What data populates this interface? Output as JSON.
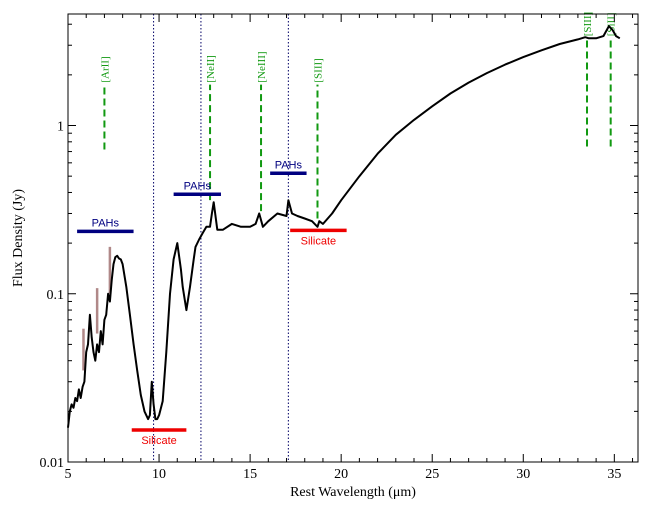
{
  "chart_data": {
    "type": "line",
    "xlabel": "Rest Wavelength (μm)",
    "ylabel": "Flux Density (Jy)",
    "xlim": [
      5,
      36.3
    ],
    "ylim": [
      0.01,
      4.6
    ],
    "yscale": "log",
    "grid": false,
    "legend": "none",
    "xticks": [
      5,
      10,
      15,
      20,
      25,
      30,
      35
    ],
    "xtick_labels": [
      "5",
      "10",
      "15",
      "20",
      "25",
      "30",
      "35"
    ],
    "yticks": [
      0.01,
      0.1,
      1
    ],
    "ytick_labels": [
      "0.01",
      "0.1",
      "1"
    ],
    "series": [
      {
        "color": "#000000",
        "x": [
          5.0,
          5.1,
          5.2,
          5.3,
          5.4,
          5.5,
          5.6,
          5.7,
          5.8,
          5.9,
          6.0,
          6.1,
          6.2,
          6.3,
          6.4,
          6.5,
          6.6,
          6.7,
          6.8,
          6.9,
          7.0,
          7.1,
          7.2,
          7.3,
          7.4,
          7.5,
          7.6,
          7.7,
          7.8,
          7.9,
          8.0,
          8.2,
          8.4,
          8.6,
          8.8,
          9.0,
          9.2,
          9.4,
          9.5,
          9.6,
          9.7,
          9.8,
          9.9,
          10.0,
          10.2,
          10.4,
          10.6,
          10.8,
          11.0,
          11.2,
          11.3,
          11.5,
          11.7,
          11.9,
          12.0,
          12.2,
          12.4,
          12.6,
          12.8,
          12.9,
          13.0,
          13.2,
          13.5,
          14.0,
          14.5,
          15.0,
          15.3,
          15.5,
          15.7,
          16.0,
          16.5,
          17.0,
          17.1,
          17.3,
          17.6,
          18.0,
          18.4,
          18.7,
          18.8,
          19.0,
          19.5,
          20.0,
          21.0,
          22.0,
          23.0,
          24.0,
          25.0,
          26.0,
          27.0,
          28.0,
          29.0,
          30.0,
          31.0,
          32.0,
          33.0,
          33.4,
          33.6,
          34.0,
          34.4,
          34.7,
          34.9,
          35.1,
          35.3
        ],
        "y": [
          0.016,
          0.02,
          0.022,
          0.021,
          0.024,
          0.023,
          0.027,
          0.024,
          0.028,
          0.03,
          0.045,
          0.05,
          0.075,
          0.055,
          0.045,
          0.04,
          0.05,
          0.045,
          0.06,
          0.05,
          0.07,
          0.075,
          0.1,
          0.09,
          0.12,
          0.15,
          0.165,
          0.168,
          0.162,
          0.16,
          0.15,
          0.11,
          0.075,
          0.05,
          0.035,
          0.025,
          0.02,
          0.018,
          0.019,
          0.03,
          0.022,
          0.018,
          0.018,
          0.019,
          0.023,
          0.045,
          0.1,
          0.16,
          0.2,
          0.14,
          0.11,
          0.08,
          0.11,
          0.16,
          0.19,
          0.21,
          0.23,
          0.25,
          0.25,
          0.3,
          0.35,
          0.24,
          0.24,
          0.26,
          0.25,
          0.25,
          0.26,
          0.3,
          0.25,
          0.27,
          0.3,
          0.29,
          0.36,
          0.3,
          0.29,
          0.28,
          0.27,
          0.25,
          0.27,
          0.26,
          0.3,
          0.36,
          0.5,
          0.68,
          0.88,
          1.08,
          1.3,
          1.55,
          1.8,
          2.05,
          2.3,
          2.55,
          2.8,
          3.05,
          3.25,
          3.35,
          3.3,
          3.3,
          3.4,
          3.9,
          3.7,
          3.4,
          3.3
        ]
      }
    ],
    "vlines": [
      {
        "x": 9.7,
        "color": "#000066"
      },
      {
        "x": 12.3,
        "color": "#000066"
      },
      {
        "x": 17.1,
        "color": "#000066"
      }
    ],
    "line_markers": [
      {
        "label": "[ArII]",
        "x": 7.0,
        "y_from": 0.72,
        "y_to": 1.75
      },
      {
        "label": "[NeII]",
        "x": 12.8,
        "y_from": 0.36,
        "y_to": 1.75
      },
      {
        "label": "[NeIII]",
        "x": 15.6,
        "y_from": 0.31,
        "y_to": 1.75
      },
      {
        "label": "[SIII]",
        "x": 18.7,
        "y_from": 0.28,
        "y_to": 1.75
      },
      {
        "label": "[SIII]",
        "x": 33.5,
        "y_from": 0.75,
        "y_to": 3.3
      },
      {
        "label": "[SiII]",
        "x": 34.8,
        "y_from": 0.75,
        "y_to": 3.3
      }
    ],
    "bands": [
      {
        "label": "PAHs",
        "x1": 5.5,
        "x2": 8.6,
        "y": 0.235,
        "color": "#000080",
        "label_pos": "above"
      },
      {
        "label": "PAHs",
        "x1": 10.8,
        "x2": 13.4,
        "y": 0.39,
        "color": "#000080",
        "label_pos": "above"
      },
      {
        "label": "PAHs",
        "x1": 16.1,
        "x2": 18.1,
        "y": 0.52,
        "color": "#000080",
        "label_pos": "above"
      },
      {
        "label": "Silicate",
        "x1": 8.5,
        "x2": 11.5,
        "y": 0.0155,
        "color": "#ee0000",
        "label_pos": "below"
      },
      {
        "label": "Silicate",
        "x1": 17.2,
        "x2": 20.3,
        "y": 0.238,
        "color": "#ee0000",
        "label_pos": "below"
      }
    ],
    "vbars": [
      {
        "x": 5.85,
        "y1": 0.035,
        "y2": 0.062
      },
      {
        "x": 6.6,
        "y1": 0.058,
        "y2": 0.108
      },
      {
        "x": 7.3,
        "y1": 0.1,
        "y2": 0.19
      }
    ],
    "vbar_color": "#b08888",
    "marker_color": "#119911"
  }
}
